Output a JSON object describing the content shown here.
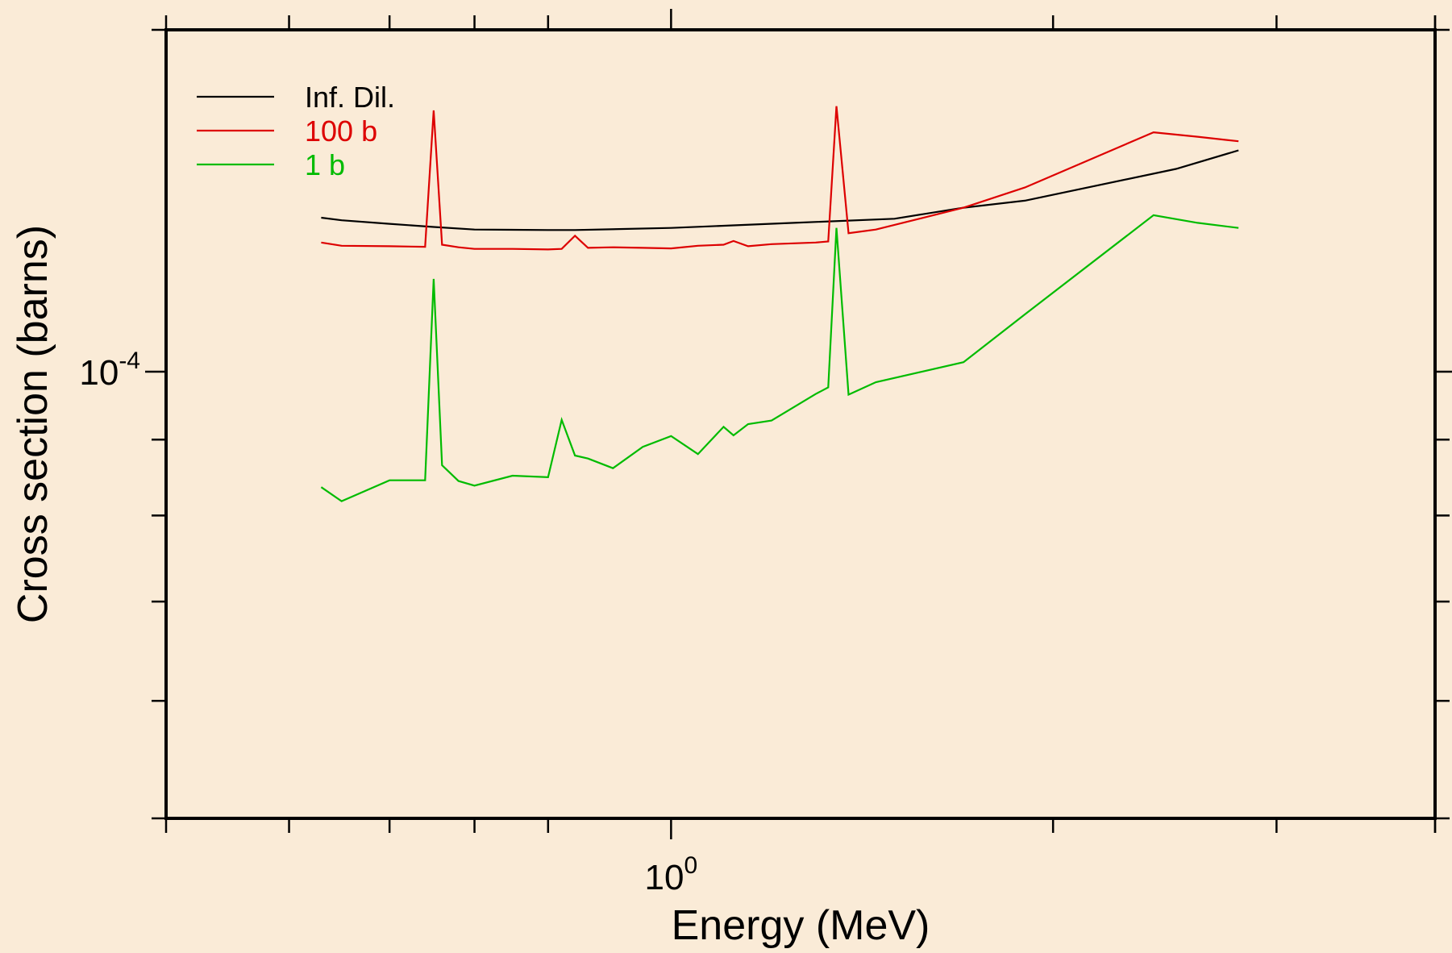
{
  "chart_data": {
    "type": "line",
    "xlabel": "Energy (MeV)",
    "ylabel": "Cross section (barns)",
    "x_scale": "log",
    "y_scale": "log",
    "xlim": [
      0.4,
      4.0
    ],
    "ylim": [
      5e-05,
      0.00017
    ],
    "x_ticks": [
      {
        "value": 1.0,
        "base": "10",
        "exp": "0"
      }
    ],
    "y_ticks": [
      {
        "value": 0.0001,
        "base": "10",
        "exp": "-4"
      }
    ],
    "x_minor_ticks": [
      0.5,
      0.6,
      0.7,
      0.8,
      2,
      3,
      4
    ],
    "y_minor_ticks": [
      5e-05,
      6e-05,
      7e-05,
      8e-05,
      9e-05
    ],
    "grid": false,
    "legend_position": "top-left",
    "background": "#FAEBD7",
    "series": [
      {
        "name": "Inf. Dil.",
        "color": "#000000",
        "x": [
          0.53,
          0.55,
          0.6,
          0.65,
          0.7,
          0.8,
          0.84,
          1.0,
          1.12,
          1.25,
          1.5,
          1.7,
          1.9,
          2.5,
          2.8
        ],
        "y": [
          0.000127,
          0.0001265,
          0.0001258,
          0.0001252,
          0.0001247,
          0.0001246,
          0.0001246,
          0.000125,
          0.0001255,
          0.000126,
          0.0001268,
          0.000129,
          0.0001304,
          0.000137,
          0.000141
        ]
      },
      {
        "name": "100 b",
        "color": "#DD0000",
        "x": [
          0.53,
          0.55,
          0.6,
          0.64,
          0.65,
          0.66,
          0.68,
          0.7,
          0.75,
          0.8,
          0.82,
          0.84,
          0.86,
          0.9,
          0.95,
          1.0,
          1.05,
          1.1,
          1.12,
          1.15,
          1.2,
          1.3,
          1.33,
          1.35,
          1.38,
          1.45,
          1.7,
          1.9,
          2.4,
          2.6,
          2.8
        ],
        "y": [
          0.0001222,
          0.0001216,
          0.0001215,
          0.0001214,
          0.00015,
          0.0001218,
          0.0001213,
          0.000121,
          0.000121,
          0.0001209,
          0.000121,
          0.0001235,
          0.0001212,
          0.0001213,
          0.0001212,
          0.0001211,
          0.0001216,
          0.0001218,
          0.0001225,
          0.0001215,
          0.0001219,
          0.0001222,
          0.0001224,
          0.000151,
          0.000124,
          0.0001247,
          0.000129,
          0.0001331,
          0.000145,
          0.000144,
          0.000143
        ]
      },
      {
        "name": "1 b",
        "color": "#00BB00",
        "x": [
          0.53,
          0.55,
          0.6,
          0.64,
          0.65,
          0.66,
          0.68,
          0.7,
          0.75,
          0.8,
          0.82,
          0.84,
          0.86,
          0.9,
          0.95,
          1.0,
          1.05,
          1.1,
          1.12,
          1.15,
          1.2,
          1.3,
          1.33,
          1.35,
          1.38,
          1.45,
          1.7,
          1.9,
          2.4,
          2.6,
          2.8
        ],
        "y": [
          8.36e-05,
          8.18e-05,
          8.45e-05,
          8.45e-05,
          0.0001155,
          8.65e-05,
          8.44e-05,
          8.38e-05,
          8.51e-05,
          8.49e-05,
          9.28e-05,
          8.78e-05,
          8.74e-05,
          8.61e-05,
          8.9e-05,
          9.05e-05,
          8.8e-05,
          9.18e-05,
          9.06e-05,
          9.22e-05,
          9.27e-05,
          9.66e-05,
          9.76e-05,
          0.000125,
          9.65e-05,
          9.84e-05,
          0.0001015,
          0.0001093,
          0.0001275,
          0.000126,
          0.000125
        ]
      }
    ]
  }
}
